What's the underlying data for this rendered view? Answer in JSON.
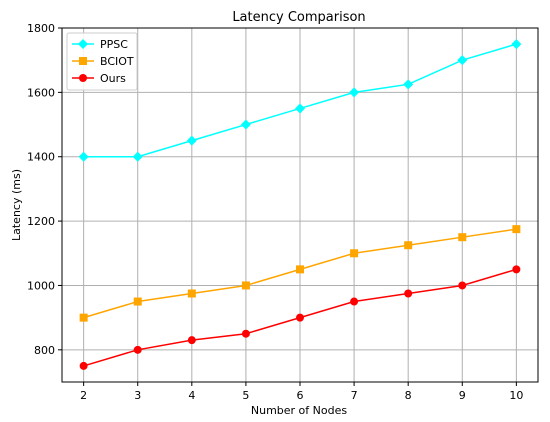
{
  "chart_data": {
    "type": "line",
    "title": "Latency Comparison",
    "xlabel": "Number of Nodes",
    "ylabel": "Latency (ms)",
    "x": [
      2,
      3,
      4,
      5,
      6,
      7,
      8,
      9,
      10
    ],
    "xlim": [
      1.6,
      10.4
    ],
    "ylim": [
      700,
      1800
    ],
    "yticks": [
      800,
      1000,
      1200,
      1400,
      1600,
      1800
    ],
    "grid": true,
    "legend_position": "top-left",
    "series": [
      {
        "name": "PPSC",
        "color": "#00ffff",
        "marker": "diamond",
        "values": [
          1400,
          1400,
          1450,
          1500,
          1550,
          1600,
          1625,
          1700,
          1750
        ]
      },
      {
        "name": "BCIOT",
        "color": "#ffa500",
        "marker": "square",
        "values": [
          900,
          950,
          975,
          1000,
          1050,
          1100,
          1125,
          1150,
          1175
        ]
      },
      {
        "name": "Ours",
        "color": "#ff0000",
        "marker": "circle",
        "values": [
          750,
          800,
          830,
          850,
          900,
          950,
          975,
          1000,
          1050
        ]
      }
    ]
  }
}
